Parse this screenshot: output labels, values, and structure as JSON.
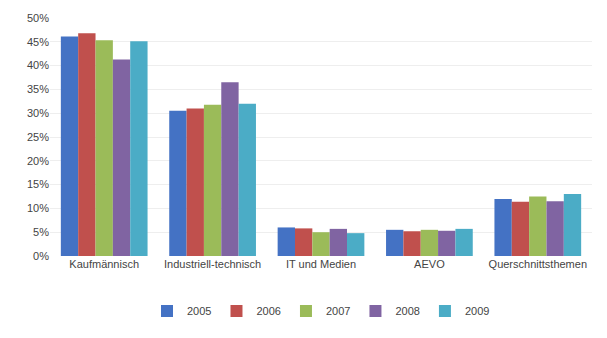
{
  "chart_data": {
    "type": "bar",
    "categories": [
      "Kaufmännisch",
      "Industriell-technisch",
      "IT und Medien",
      "AEVO",
      "Querschnittsthemen"
    ],
    "series": [
      {
        "name": "2005",
        "color": "#4472C4",
        "values": [
          0.461,
          0.305,
          0.06,
          0.055,
          0.12
        ]
      },
      {
        "name": "2006",
        "color": "#C0504D",
        "values": [
          0.468,
          0.31,
          0.058,
          0.052,
          0.114
        ]
      },
      {
        "name": "2007",
        "color": "#9BBB59",
        "values": [
          0.453,
          0.318,
          0.05,
          0.055,
          0.125
        ]
      },
      {
        "name": "2008",
        "color": "#8064A2",
        "values": [
          0.413,
          0.365,
          0.057,
          0.053,
          0.115
        ]
      },
      {
        "name": "2009",
        "color": "#4BACC6",
        "values": [
          0.451,
          0.32,
          0.048,
          0.057,
          0.13
        ]
      }
    ],
    "ylim": [
      0,
      0.5
    ],
    "yticks": [
      {
        "value": 0,
        "label": "0%"
      },
      {
        "value": 0.05,
        "label": "5%"
      },
      {
        "value": 0.1,
        "label": "10%"
      },
      {
        "value": 0.15,
        "label": "15%"
      },
      {
        "value": 0.2,
        "label": "20%"
      },
      {
        "value": 0.25,
        "label": "25%"
      },
      {
        "value": 0.3,
        "label": "30%"
      },
      {
        "value": 0.35,
        "label": "35%"
      },
      {
        "value": 0.4,
        "label": "40%"
      },
      {
        "value": 0.45,
        "label": "45%"
      },
      {
        "value": 0.5,
        "label": "50%"
      }
    ],
    "grid": true,
    "legend": "bottom"
  }
}
